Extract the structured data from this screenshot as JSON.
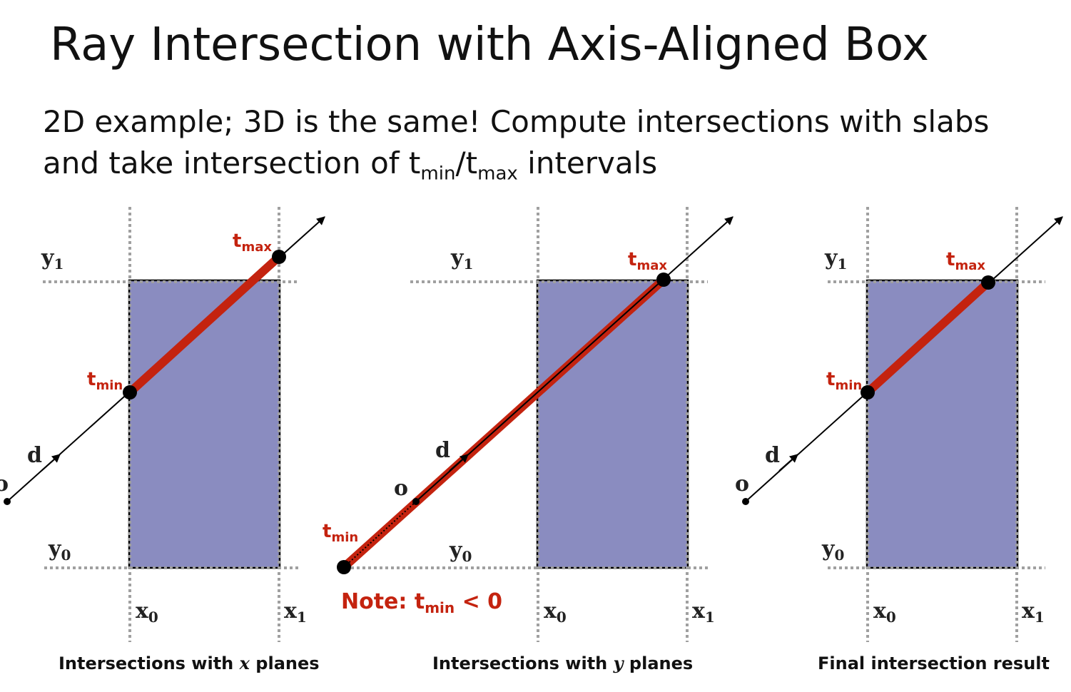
{
  "title": "Ray Intersection with Axis-Aligned Box",
  "body": {
    "line1": "2D example; 3D is the same!  Compute intersections with slabs",
    "line2_pre": "and take intersection of t",
    "line2_min": "min",
    "line2_slash": "/t",
    "line2_max": "max",
    "line2_post": " intervals"
  },
  "labels": {
    "y": "y",
    "x": "x",
    "sub0": "0",
    "sub1": "1",
    "d": "d",
    "o": "o",
    "t": "t",
    "min": "min",
    "max": "max"
  },
  "note": {
    "prefix": "Note:  t",
    "sub": "min",
    "suffix": " < 0"
  },
  "captions": {
    "panel1_pre": "Intersections with ",
    "panel1_var": "x",
    "panel1_post": " planes",
    "panel2_pre": "Intersections with ",
    "panel2_var": "y",
    "panel2_post": " planes",
    "panel3": "Final intersection result"
  },
  "colors": {
    "box_fill": "#8a8cc0",
    "highlight": "#c4230f",
    "slab_line": "#a0a0a0"
  }
}
